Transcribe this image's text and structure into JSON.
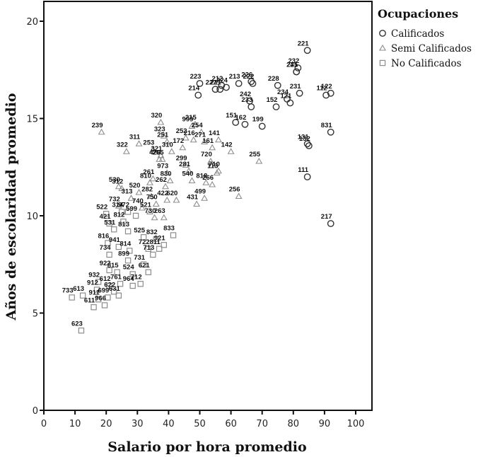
{
  "chart_data": {
    "type": "scatter",
    "title": "",
    "xlabel": "Salario por hora promedio",
    "ylabel": "Años de escolaridad promedio",
    "xlim": [
      0,
      105
    ],
    "ylim": [
      0,
      21
    ],
    "xticks": [
      0,
      10,
      20,
      30,
      40,
      50,
      60,
      70,
      80,
      90,
      100
    ],
    "yticks": [
      0,
      5,
      10,
      15,
      20
    ],
    "grid": false,
    "legend": {
      "title": "Ocupaciones",
      "position": "right-top",
      "entries": [
        {
          "name": "Calificados",
          "marker": "circle"
        },
        {
          "name": "Semi Calificados",
          "marker": "triangle"
        },
        {
          "name": "No Calificados",
          "marker": "square"
        }
      ]
    },
    "series": [
      {
        "name": "Calificados",
        "marker": "circle",
        "color": "#333333",
        "points": [
          {
            "label": "221",
            "x": 84.5,
            "y": 18.5
          },
          {
            "label": "232",
            "x": 81.5,
            "y": 17.6
          },
          {
            "label": "241",
            "x": 81.0,
            "y": 17.4
          },
          {
            "label": "225",
            "x": 81.0,
            "y": 17.4
          },
          {
            "label": "212",
            "x": 57.0,
            "y": 16.7
          },
          {
            "label": "223",
            "x": 50.0,
            "y": 16.8
          },
          {
            "label": "227",
            "x": 55.0,
            "y": 16.5
          },
          {
            "label": "213",
            "x": 62.5,
            "y": 16.8
          },
          {
            "label": "222",
            "x": 67.0,
            "y": 16.8
          },
          {
            "label": "228",
            "x": 75.0,
            "y": 16.7
          },
          {
            "label": "211",
            "x": 56.5,
            "y": 16.5
          },
          {
            "label": "224",
            "x": 58.5,
            "y": 16.6
          },
          {
            "label": "226",
            "x": 66.5,
            "y": 16.9
          },
          {
            "label": "214",
            "x": 49.5,
            "y": 16.2
          },
          {
            "label": "242",
            "x": 66.0,
            "y": 15.9
          },
          {
            "label": "231",
            "x": 82.0,
            "y": 16.3
          },
          {
            "label": "122",
            "x": 92.0,
            "y": 16.3
          },
          {
            "label": "112",
            "x": 90.5,
            "y": 16.2
          },
          {
            "label": "234",
            "x": 78.0,
            "y": 16.0
          },
          {
            "label": "233",
            "x": 66.5,
            "y": 15.6
          },
          {
            "label": "152",
            "x": 74.5,
            "y": 15.6
          },
          {
            "label": "121",
            "x": 79.0,
            "y": 15.8
          },
          {
            "label": "151",
            "x": 61.5,
            "y": 14.8
          },
          {
            "label": "162",
            "x": 64.5,
            "y": 14.7
          },
          {
            "label": "199",
            "x": 70.0,
            "y": 14.6
          },
          {
            "label": "831",
            "x": 92.0,
            "y": 14.3
          },
          {
            "label": "131",
            "x": 84.5,
            "y": 13.7
          },
          {
            "label": "132",
            "x": 85.0,
            "y": 13.6
          },
          {
            "label": "111",
            "x": 84.5,
            "y": 12.0
          },
          {
            "label": "217",
            "x": 92.0,
            "y": 9.6
          }
        ]
      },
      {
        "name": "Semi Calificados",
        "marker": "triangle",
        "color": "#8c8c8c",
        "points": [
          {
            "label": "239",
            "x": 18.5,
            "y": 14.3
          },
          {
            "label": "320",
            "x": 37.5,
            "y": 14.8
          },
          {
            "label": "999",
            "x": 47.5,
            "y": 14.6
          },
          {
            "label": "215",
            "x": 48.5,
            "y": 14.7
          },
          {
            "label": "254",
            "x": 50.5,
            "y": 14.3
          },
          {
            "label": "323",
            "x": 38.5,
            "y": 14.1
          },
          {
            "label": "252",
            "x": 45.5,
            "y": 14.0
          },
          {
            "label": "311",
            "x": 30.5,
            "y": 13.7
          },
          {
            "label": "251",
            "x": 39.5,
            "y": 13.8
          },
          {
            "label": "216",
            "x": 48.0,
            "y": 13.9
          },
          {
            "label": "271",
            "x": 51.5,
            "y": 13.8
          },
          {
            "label": "141",
            "x": 56.0,
            "y": 13.9
          },
          {
            "label": "322",
            "x": 26.5,
            "y": 13.3
          },
          {
            "label": "253",
            "x": 35.0,
            "y": 13.4
          },
          {
            "label": "310",
            "x": 41.0,
            "y": 13.3
          },
          {
            "label": "172",
            "x": 44.5,
            "y": 13.5
          },
          {
            "label": "161",
            "x": 54.0,
            "y": 13.5
          },
          {
            "label": "142",
            "x": 60.0,
            "y": 13.3
          },
          {
            "label": "420",
            "x": 37.0,
            "y": 12.9
          },
          {
            "label": "321",
            "x": 37.5,
            "y": 13.1
          },
          {
            "label": "265",
            "x": 38.0,
            "y": 12.9
          },
          {
            "label": "299",
            "x": 45.5,
            "y": 12.6
          },
          {
            "label": "281",
            "x": 46.5,
            "y": 12.3
          },
          {
            "label": "720",
            "x": 53.5,
            "y": 12.8
          },
          {
            "label": "710",
            "x": 56.0,
            "y": 12.3
          },
          {
            "label": "255",
            "x": 69.0,
            "y": 12.8
          },
          {
            "label": "810",
            "x": 34.0,
            "y": 11.7
          },
          {
            "label": "261",
            "x": 35.0,
            "y": 11.9
          },
          {
            "label": "973",
            "x": 39.5,
            "y": 12.2
          },
          {
            "label": "830",
            "x": 40.5,
            "y": 11.8
          },
          {
            "label": "262",
            "x": 39.0,
            "y": 11.5
          },
          {
            "label": "540",
            "x": 47.5,
            "y": 11.8
          },
          {
            "label": "818",
            "x": 52.0,
            "y": 11.7
          },
          {
            "label": "266",
            "x": 54.0,
            "y": 11.6
          },
          {
            "label": "113",
            "x": 55.5,
            "y": 12.2
          },
          {
            "label": "530",
            "x": 24.0,
            "y": 11.5
          },
          {
            "label": "312",
            "x": 25.0,
            "y": 11.4
          },
          {
            "label": "520",
            "x": 30.5,
            "y": 11.2
          },
          {
            "label": "282",
            "x": 34.5,
            "y": 11.0
          },
          {
            "label": "750",
            "x": 36.0,
            "y": 10.6
          },
          {
            "label": "422",
            "x": 39.5,
            "y": 10.8
          },
          {
            "label": "620",
            "x": 42.5,
            "y": 10.8
          },
          {
            "label": "431",
            "x": 49.0,
            "y": 10.6
          },
          {
            "label": "499",
            "x": 51.5,
            "y": 10.9
          },
          {
            "label": "256",
            "x": 62.5,
            "y": 11.0
          },
          {
            "label": "313",
            "x": 28.0,
            "y": 10.9
          },
          {
            "label": "740",
            "x": 31.5,
            "y": 10.4
          },
          {
            "label": "732",
            "x": 24.0,
            "y": 10.5
          },
          {
            "label": "521",
            "x": 34.0,
            "y": 10.2
          },
          {
            "label": "730",
            "x": 35.5,
            "y": 9.9
          },
          {
            "label": "263",
            "x": 38.5,
            "y": 9.9
          }
        ]
      },
      {
        "name": "No Calificados",
        "marker": "square",
        "color": "#8c8c8c",
        "points": [
          {
            "label": "972",
            "x": 27.0,
            "y": 10.2
          },
          {
            "label": "314",
            "x": 25.0,
            "y": 10.2
          },
          {
            "label": "522",
            "x": 20.0,
            "y": 10.1
          },
          {
            "label": "599",
            "x": 29.5,
            "y": 10.0
          },
          {
            "label": "421",
            "x": 21.0,
            "y": 9.6
          },
          {
            "label": "812",
            "x": 25.5,
            "y": 9.7
          },
          {
            "label": "531",
            "x": 22.5,
            "y": 9.3
          },
          {
            "label": "813",
            "x": 27.0,
            "y": 9.2
          },
          {
            "label": "525",
            "x": 32.0,
            "y": 8.9
          },
          {
            "label": "833",
            "x": 41.5,
            "y": 9.0
          },
          {
            "label": "816",
            "x": 20.5,
            "y": 8.6
          },
          {
            "label": "832",
            "x": 36.0,
            "y": 8.8
          },
          {
            "label": "941",
            "x": 24.0,
            "y": 8.4
          },
          {
            "label": "814",
            "x": 27.5,
            "y": 8.2
          },
          {
            "label": "722",
            "x": 33.5,
            "y": 8.3
          },
          {
            "label": "921",
            "x": 38.5,
            "y": 8.5
          },
          {
            "label": "734",
            "x": 21.0,
            "y": 8.0
          },
          {
            "label": "899",
            "x": 27.0,
            "y": 7.7
          },
          {
            "label": "731",
            "x": 32.0,
            "y": 7.5
          },
          {
            "label": "713",
            "x": 35.0,
            "y": 8.0
          },
          {
            "label": "811",
            "x": 37.0,
            "y": 8.3
          },
          {
            "label": "922",
            "x": 21.0,
            "y": 7.2
          },
          {
            "label": "815",
            "x": 23.5,
            "y": 7.1
          },
          {
            "label": "524",
            "x": 28.5,
            "y": 7.0
          },
          {
            "label": "621",
            "x": 33.5,
            "y": 7.1
          },
          {
            "label": "932",
            "x": 17.5,
            "y": 6.6
          },
          {
            "label": "612",
            "x": 21.0,
            "y": 6.4
          },
          {
            "label": "761",
            "x": 24.5,
            "y": 6.5
          },
          {
            "label": "712",
            "x": 31.0,
            "y": 6.5
          },
          {
            "label": "733",
            "x": 9.0,
            "y": 5.8
          },
          {
            "label": "613",
            "x": 12.5,
            "y": 5.9
          },
          {
            "label": "912",
            "x": 17.0,
            "y": 6.2
          },
          {
            "label": "622",
            "x": 22.5,
            "y": 6.1
          },
          {
            "label": "964",
            "x": 28.5,
            "y": 6.4
          },
          {
            "label": "911",
            "x": 17.5,
            "y": 5.7
          },
          {
            "label": "699",
            "x": 20.5,
            "y": 5.8
          },
          {
            "label": "631",
            "x": 24.0,
            "y": 5.9
          },
          {
            "label": "611",
            "x": 16.0,
            "y": 5.3
          },
          {
            "label": "966",
            "x": 19.5,
            "y": 5.4
          },
          {
            "label": "623",
            "x": 12.0,
            "y": 4.1
          }
        ]
      }
    ]
  }
}
